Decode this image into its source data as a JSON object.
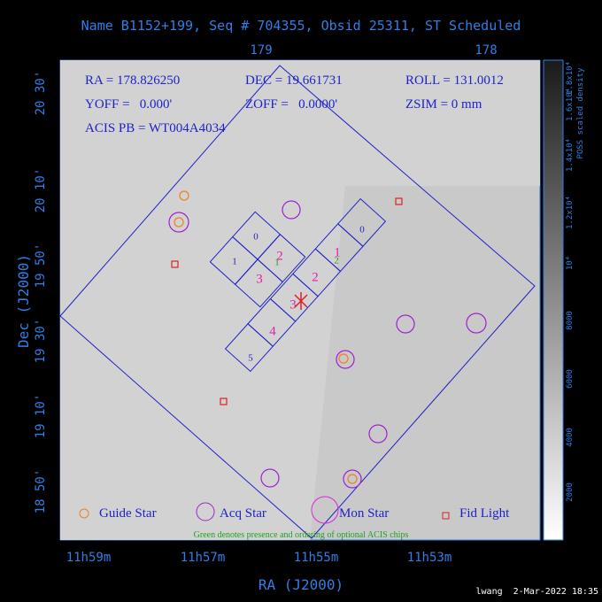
{
  "header": {
    "title": "Name B1152+199, Seq # 704355, Obsid 25311, ST Scheduled"
  },
  "axes": {
    "top_ticks": [
      "179",
      "178"
    ],
    "left_ticks": [
      "20 30'",
      "20 10'",
      "19 50'",
      "19 30'",
      "19 10'",
      "18 50'"
    ],
    "bottom_ticks": [
      "11h59m",
      "11h57m",
      "11h55m",
      "11h53m"
    ],
    "x_label": "RA (J2000)",
    "y_label": "Dec (J2000)"
  },
  "info": [
    "RA = 178.826250",
    "DEC = 19.661731",
    "ROLL = 131.0012",
    "YOFF =   0.000'",
    "ZOFF =   0.0000'",
    "ZSIM = 0 mm",
    "ACIS PB = WT004A4034"
  ],
  "chips": {
    "i_array": [
      "0",
      "1",
      "2",
      "3"
    ],
    "s_array": [
      "0",
      "1",
      "2",
      "3",
      "4",
      "5"
    ],
    "optional": [
      "1",
      "2"
    ]
  },
  "legend": [
    "Guide Star",
    "Acq Star",
    "Mon Star",
    "Fid Light"
  ],
  "note": "Green denotes presence and ordering of optional ACIS chips",
  "colorbar": {
    "label": "POSS scaled density",
    "ticks": [
      "2000",
      "4000",
      "6000",
      "8000",
      "10⁴",
      "1.2x10⁴",
      "1.4x10⁴",
      "1.6x10⁴",
      "1.8x10⁴"
    ]
  },
  "footer": "lwang  2-Mar-2022 18:35"
}
